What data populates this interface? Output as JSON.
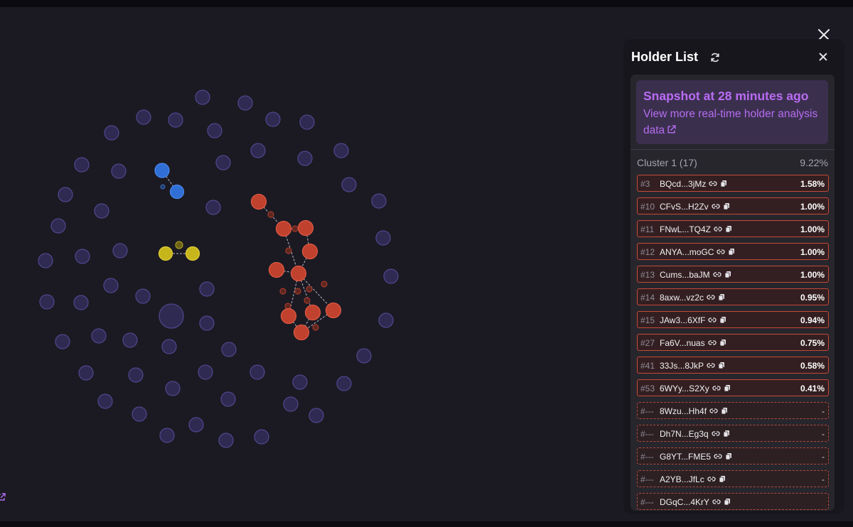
{
  "panel": {
    "title": "Holder List",
    "snapshot_title": "Snapshot at 28 minutes ago",
    "snapshot_link": "View more real-time holder analysis data",
    "cluster_name": "Cluster 1 (17)",
    "cluster_pct": "9.22%"
  },
  "holders": [
    {
      "rank": "#3",
      "address": "BQcd...3jMz",
      "percent": "1.58%",
      "ranked": true
    },
    {
      "rank": "#10",
      "address": "CFvS...H2Zv",
      "percent": "1.00%",
      "ranked": true
    },
    {
      "rank": "#11",
      "address": "FNwL...TQ4Z",
      "percent": "1.00%",
      "ranked": true
    },
    {
      "rank": "#12",
      "address": "ANYA...moGC",
      "percent": "1.00%",
      "ranked": true
    },
    {
      "rank": "#13",
      "address": "Cums...baJM",
      "percent": "1.00%",
      "ranked": true
    },
    {
      "rank": "#14",
      "address": "8axw...vz2c",
      "percent": "0.95%",
      "ranked": true
    },
    {
      "rank": "#15",
      "address": "JAw3...6XfF",
      "percent": "0.94%",
      "ranked": true
    },
    {
      "rank": "#27",
      "address": "Fa6V...nuas",
      "percent": "0.75%",
      "ranked": true
    },
    {
      "rank": "#41",
      "address": "33Js...8JkP",
      "percent": "0.58%",
      "ranked": true
    },
    {
      "rank": "#53",
      "address": "6WYy...S2Xy",
      "percent": "0.41%",
      "ranked": true
    },
    {
      "rank": "#---",
      "address": "8Wzu...Hh4f",
      "percent": "-",
      "ranked": false
    },
    {
      "rank": "#---",
      "address": "Dh7N...Eg3q",
      "percent": "-",
      "ranked": false
    },
    {
      "rank": "#---",
      "address": "G8YT...FME5",
      "percent": "-",
      "ranked": false
    },
    {
      "rank": "#---",
      "address": "A2YB...JfLc",
      "percent": "-",
      "ranked": false
    },
    {
      "rank": "#---",
      "address": "DGqC...4KrY",
      "percent": "",
      "ranked": false
    }
  ],
  "colors": {
    "bubble_default": "#332d5a",
    "bubble_stroke": "#5a4fa3",
    "cluster_red": "#c0412e",
    "cluster_blue": "#2f6fd6",
    "cluster_yellow": "#c7b51c",
    "accent_purple": "#b96cf3"
  },
  "icons": {
    "close": "close-icon",
    "refresh": "refresh-icon",
    "panel_close": "close-icon",
    "external_link": "external-link-icon",
    "link": "link-icon",
    "copy": "copy-icon"
  }
}
